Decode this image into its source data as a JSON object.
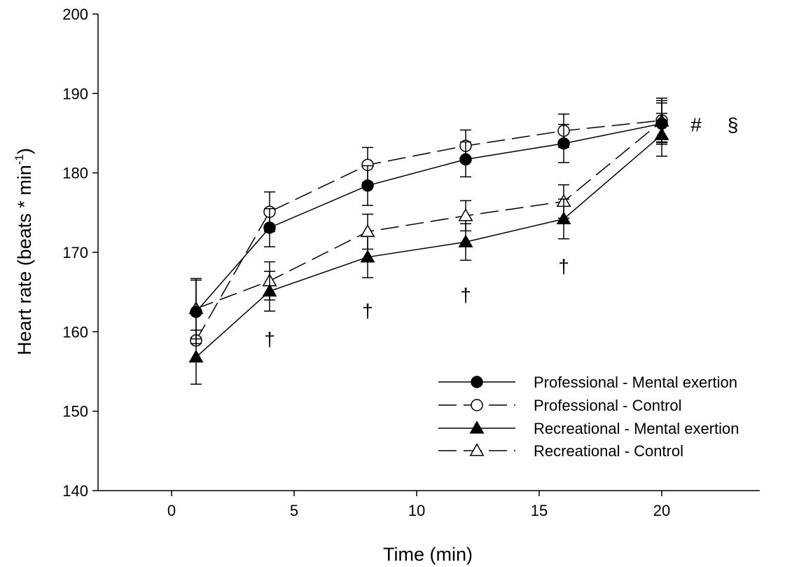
{
  "chart_data": {
    "type": "line",
    "title": "",
    "xlabel": "Time (min)",
    "ylabel": "Heart rate (beats * min",
    "ylabel_superscript": "-1",
    "ylabel_close": ")",
    "xlim": [
      -3,
      24
    ],
    "ylim": [
      140,
      200
    ],
    "xticks": [
      0,
      5,
      10,
      15,
      20
    ],
    "yticks": [
      140,
      150,
      160,
      170,
      180,
      190,
      200
    ],
    "grid": false,
    "legend_position": "bottom-right",
    "series": [
      {
        "name": "Professional - Mental exertion",
        "x": [
          1,
          4,
          8,
          12,
          16,
          20
        ],
        "y": [
          162.5,
          173.1,
          178.4,
          181.7,
          183.7,
          186.2
        ],
        "err": [
          4.0,
          2.4,
          2.5,
          2.2,
          2.4,
          2.6
        ],
        "marker": "circle",
        "filled": true,
        "dashed": false
      },
      {
        "name": "Professional - Control",
        "x": [
          1,
          4,
          8,
          12,
          16,
          20
        ],
        "y": [
          158.9,
          175.1,
          181.0,
          183.4,
          185.3,
          186.6
        ],
        "err": [
          0.4,
          2.5,
          2.2,
          2.0,
          2.1,
          2.8
        ],
        "marker": "circle",
        "filled": false,
        "dashed": true
      },
      {
        "name": "Recreational - Mental exertion",
        "x": [
          1,
          4,
          8,
          12,
          16,
          20
        ],
        "y": [
          156.8,
          165.1,
          169.4,
          171.3,
          174.2,
          184.8
        ],
        "err": [
          3.4,
          2.5,
          2.6,
          2.3,
          2.5,
          2.7
        ],
        "marker": "triangle",
        "filled": true,
        "dashed": false
      },
      {
        "name": "Recreational - Control",
        "x": [
          1,
          4,
          8,
          12,
          16,
          20
        ],
        "y": [
          162.9,
          166.4,
          172.6,
          174.6,
          176.4,
          186.5
        ],
        "err": [
          3.8,
          2.4,
          2.2,
          1.9,
          2.1,
          2.6
        ],
        "marker": "triangle",
        "filled": false,
        "dashed": true
      }
    ],
    "annotations": [
      {
        "text": "†",
        "x": 4,
        "y": 158.2
      },
      {
        "text": "†",
        "x": 8,
        "y": 161.8
      },
      {
        "text": "†",
        "x": 12,
        "y": 163.8
      },
      {
        "text": "†",
        "x": 16,
        "y": 167.4
      },
      {
        "text": "#",
        "x": 21.4,
        "y": 185.2
      },
      {
        "text": "§",
        "x": 22.9,
        "y": 185.2
      }
    ]
  }
}
